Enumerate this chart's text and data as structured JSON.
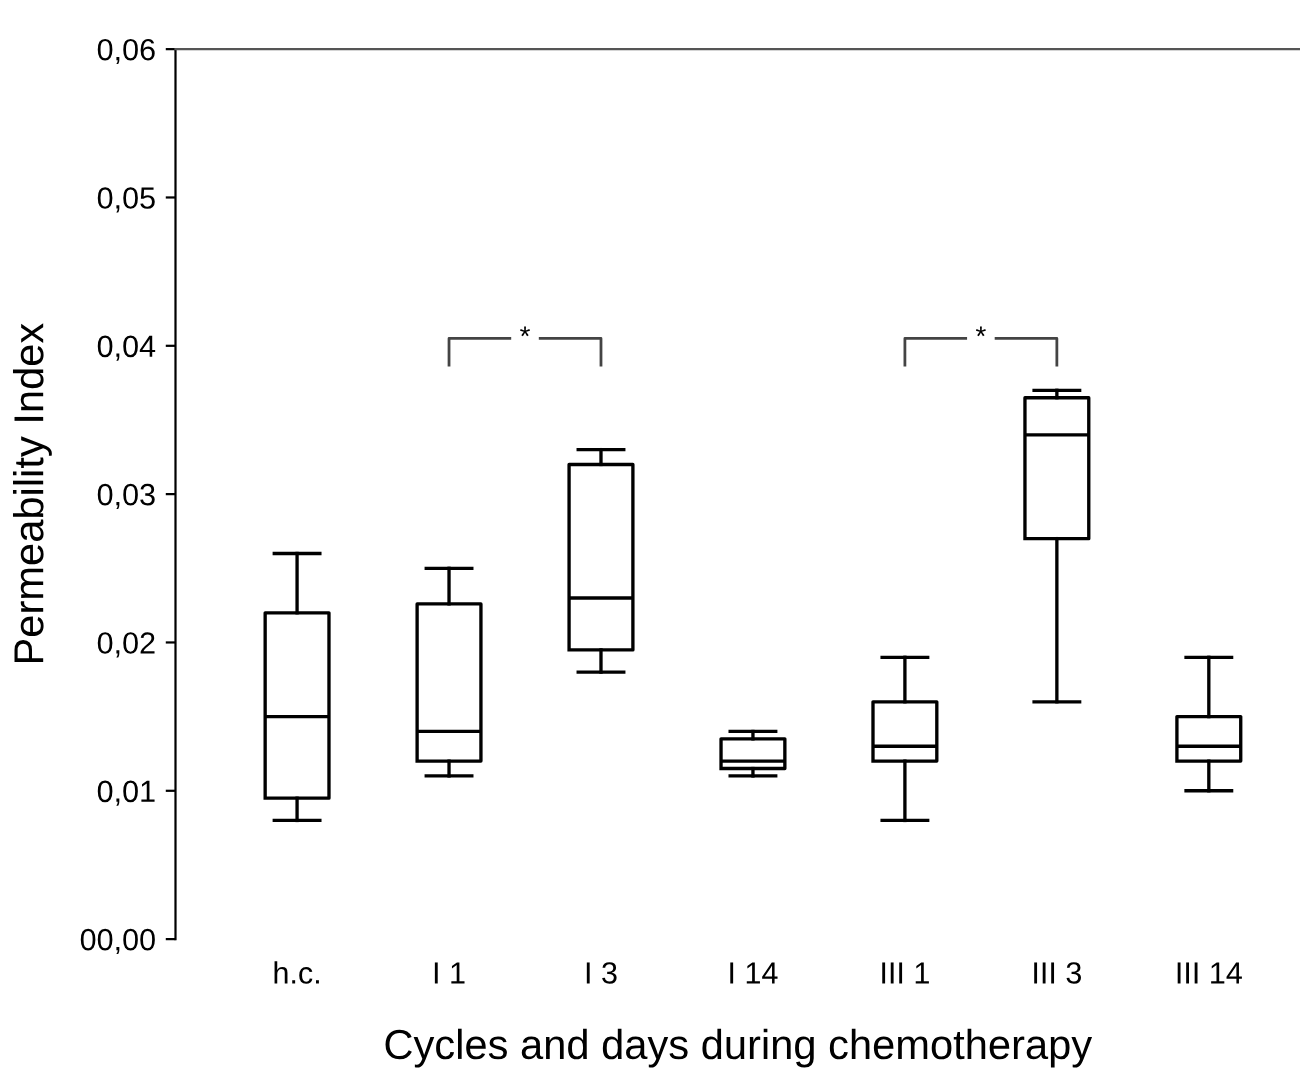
{
  "chart_data": {
    "type": "box",
    "xlabel": "Cycles and days during chemotherapy",
    "ylabel": "Permeability Index",
    "categories": [
      "h.c.",
      "I 1",
      "I 3",
      "I 14",
      "III 1",
      "III 3",
      "III 14"
    ],
    "boxes": [
      {
        "low": 0.008,
        "q1": 0.0095,
        "median": 0.015,
        "q3": 0.022,
        "high": 0.026
      },
      {
        "low": 0.011,
        "q1": 0.012,
        "median": 0.014,
        "q3": 0.0226,
        "high": 0.025
      },
      {
        "low": 0.018,
        "q1": 0.0195,
        "median": 0.023,
        "q3": 0.032,
        "high": 0.033
      },
      {
        "low": 0.011,
        "q1": 0.0115,
        "median": 0.012,
        "q3": 0.0135,
        "high": 0.014
      },
      {
        "low": 0.008,
        "q1": 0.012,
        "median": 0.013,
        "q3": 0.016,
        "high": 0.019
      },
      {
        "low": 0.016,
        "q1": 0.027,
        "median": 0.034,
        "q3": 0.0365,
        "high": 0.037
      },
      {
        "low": 0.01,
        "q1": 0.012,
        "median": 0.013,
        "q3": 0.015,
        "high": 0.019
      }
    ],
    "ylim": [
      0,
      0.06
    ],
    "yticks": [
      {
        "value": 0,
        "label": "00,00"
      },
      {
        "value": 0.01,
        "label": "0,01"
      },
      {
        "value": 0.02,
        "label": "0,02"
      },
      {
        "value": 0.03,
        "label": "0,03"
      },
      {
        "value": 0.04,
        "label": "0,04"
      },
      {
        "value": 0.05,
        "label": "0,05"
      },
      {
        "value": 0.06,
        "label": "0,06"
      }
    ],
    "annotations": [
      "*",
      "*"
    ],
    "grid": false,
    "legend": false
  }
}
